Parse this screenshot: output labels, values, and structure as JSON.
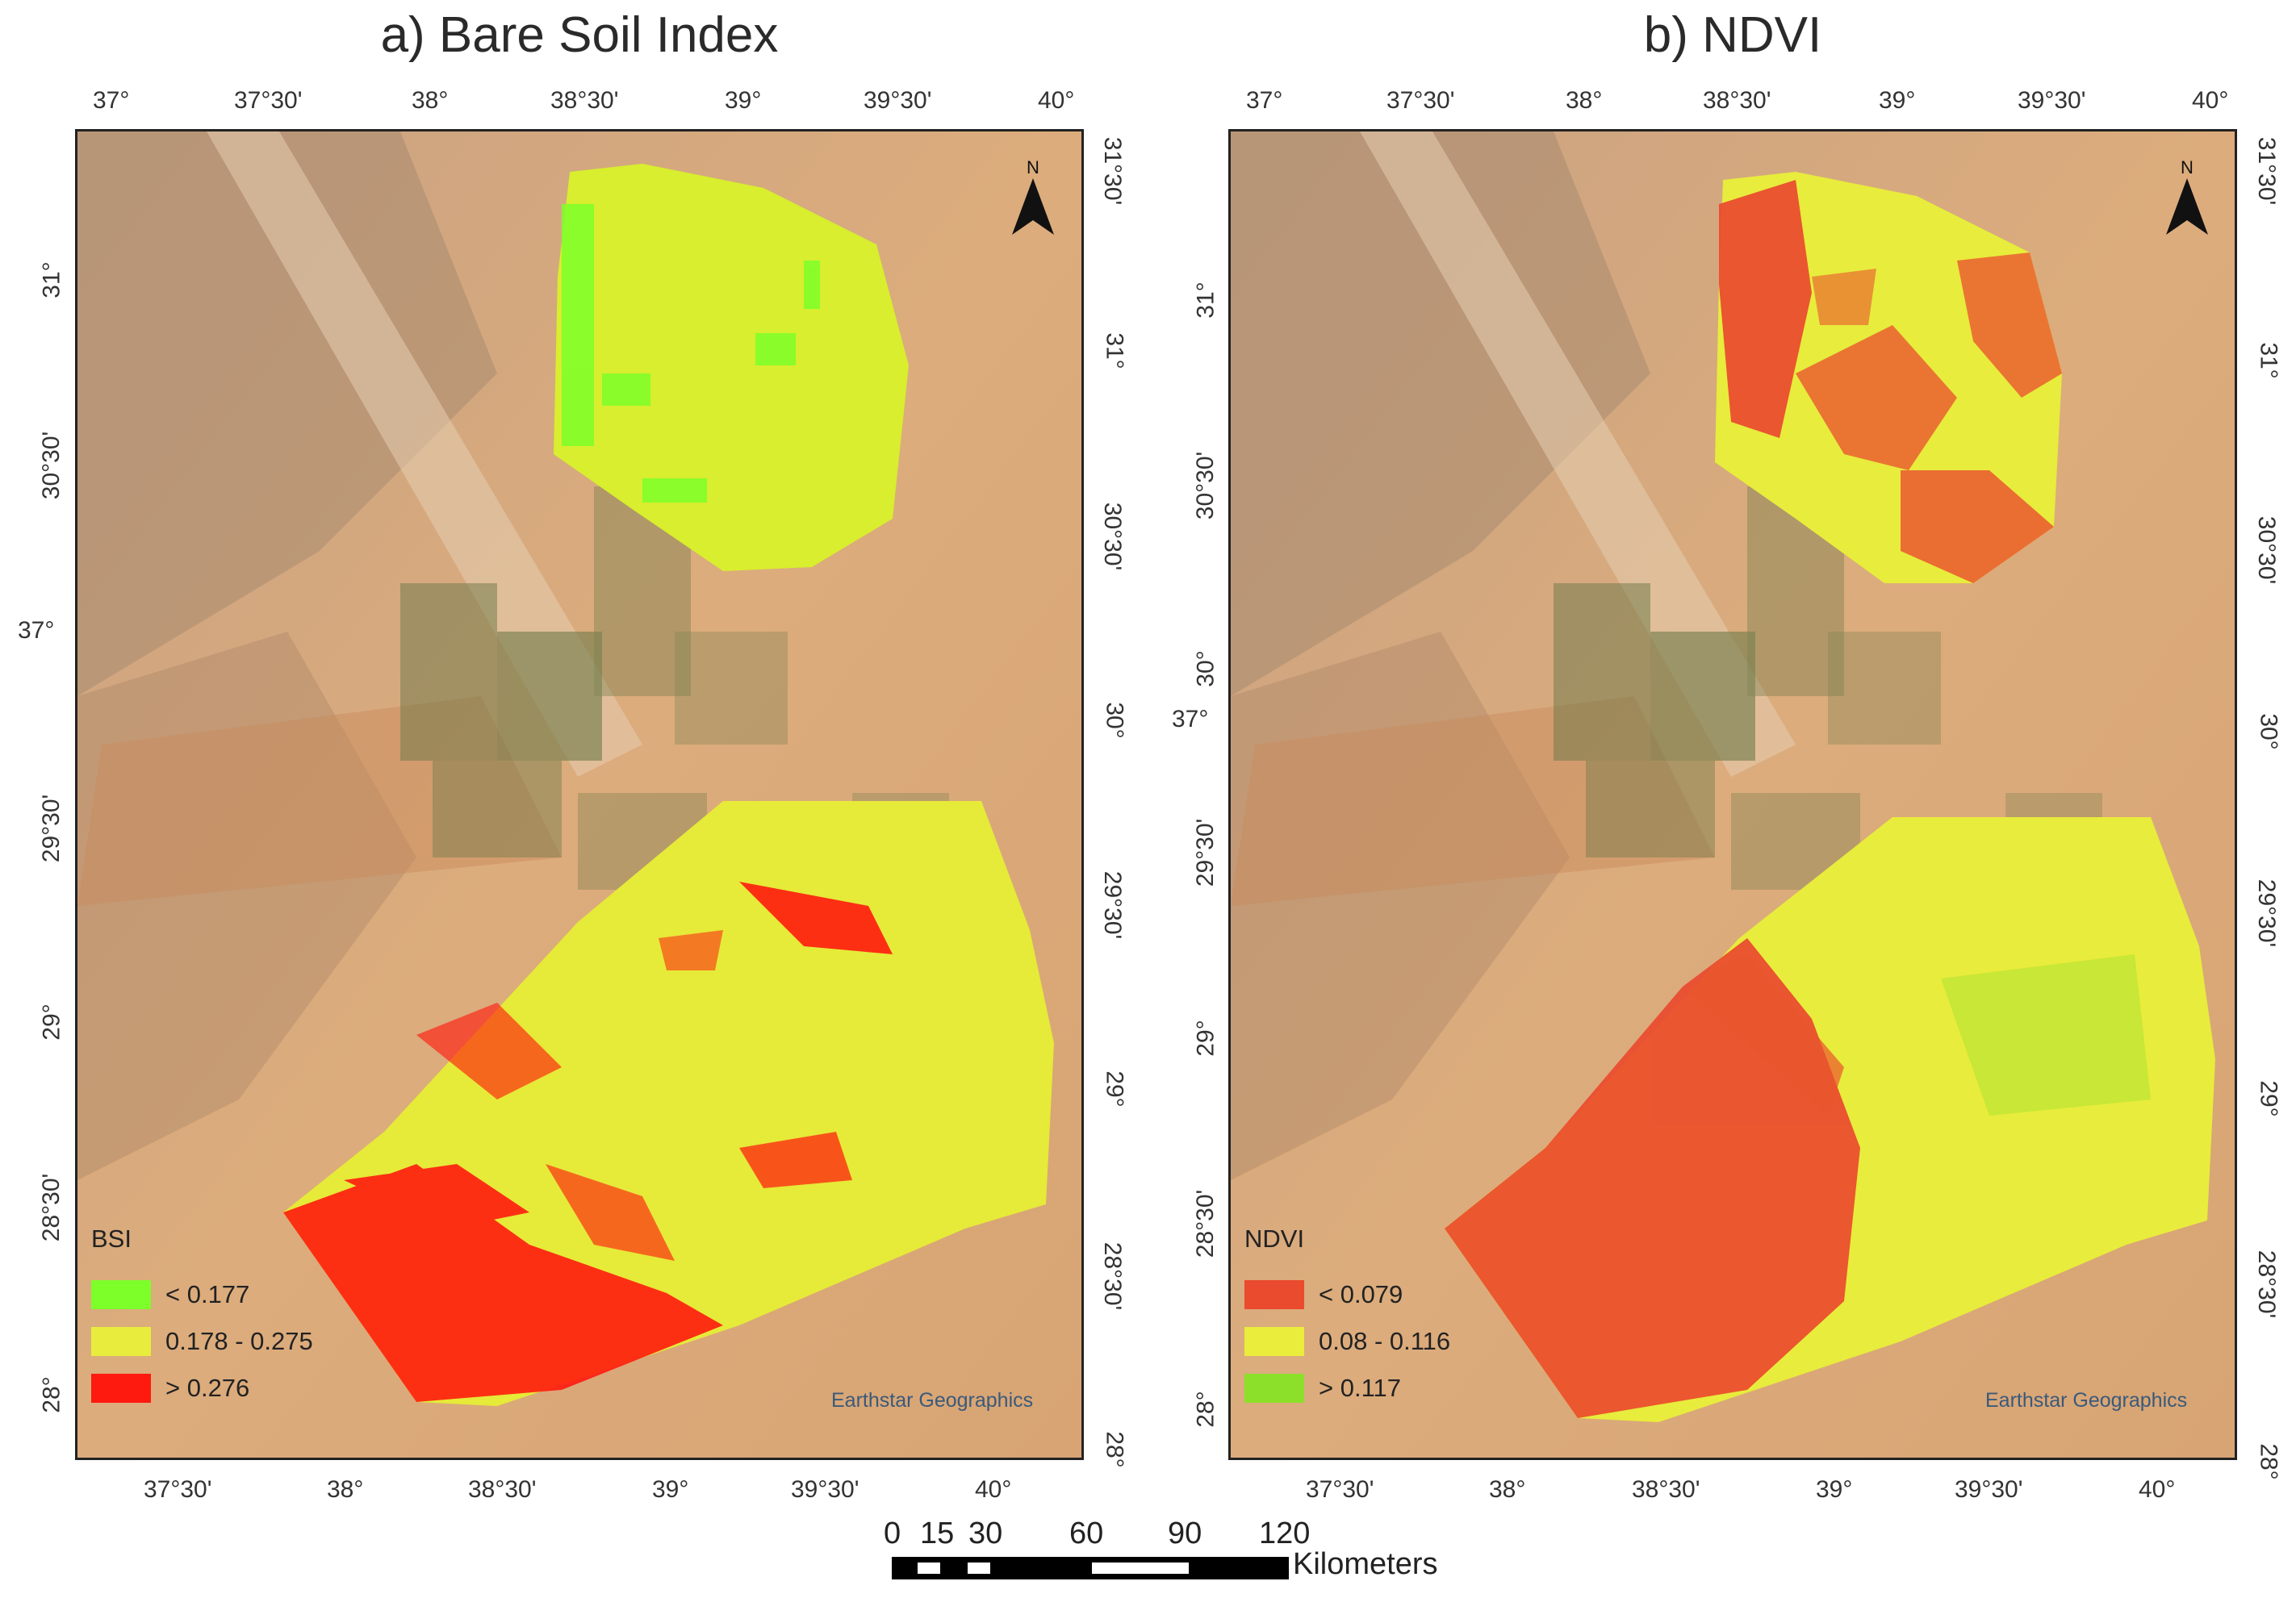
{
  "panels": [
    {
      "title": "a) Bare Soil Index",
      "top_ticks": [
        "37°",
        "37°30'",
        "38°",
        "38°30'",
        "39°",
        "39°30'",
        "40°"
      ],
      "bottom_ticks": [
        "37°30'",
        "38°",
        "38°30'",
        "39°",
        "39°30'",
        "40°"
      ],
      "left_ticks": [
        "31°",
        "30°30'",
        "37°",
        "29°30'",
        "29°",
        "28°30'",
        "28°"
      ],
      "right_ticks": [
        "31°30'",
        "31°",
        "30°30'",
        "30°",
        "29°30'",
        "29°",
        "28°30'",
        "28°"
      ],
      "north_label": "N",
      "credit": "Earthstar Geographics",
      "legend": {
        "title": "BSI",
        "items": [
          {
            "label": "< 0.177",
            "color": "#7dff2a"
          },
          {
            "label": "0.178 - 0.275",
            "color": "#e8ec3c"
          },
          {
            "label": "> 0.276",
            "color": "#ff1a10"
          }
        ]
      }
    },
    {
      "title": "b) NDVI",
      "top_ticks": [
        "37°",
        "37°30'",
        "38°",
        "38°30'",
        "39°",
        "39°30'",
        "40°"
      ],
      "bottom_ticks": [
        "37°30'",
        "38°",
        "38°30'",
        "39°",
        "39°30'",
        "40°"
      ],
      "left_ticks": [
        "31°",
        "30°30'",
        "30°",
        "37°",
        "29°30'",
        "29°",
        "28°30'",
        "28°"
      ],
      "right_ticks": [
        "31°30'",
        "31°",
        "30°30'",
        "30°",
        "29°30'",
        "29°",
        "28°30'",
        "28°"
      ],
      "north_label": "N",
      "credit": "Earthstar Geographics",
      "legend": {
        "title": "NDVI",
        "items": [
          {
            "label": "< 0.079",
            "color": "#ea4a2e"
          },
          {
            "label": "0.08 - 0.116",
            "color": "#eaed3c"
          },
          {
            "label": "> 0.117",
            "color": "#8ce02a"
          }
        ]
      }
    }
  ],
  "scale_bar": {
    "labels": [
      "0",
      "15",
      "30",
      "60",
      "90",
      "120"
    ],
    "unit": "Kilometers"
  },
  "colors": {
    "desert": "#d9a878",
    "desert_dark": "#a98a6a",
    "vegetation": "#6e7a4a",
    "frame": "#222222"
  }
}
